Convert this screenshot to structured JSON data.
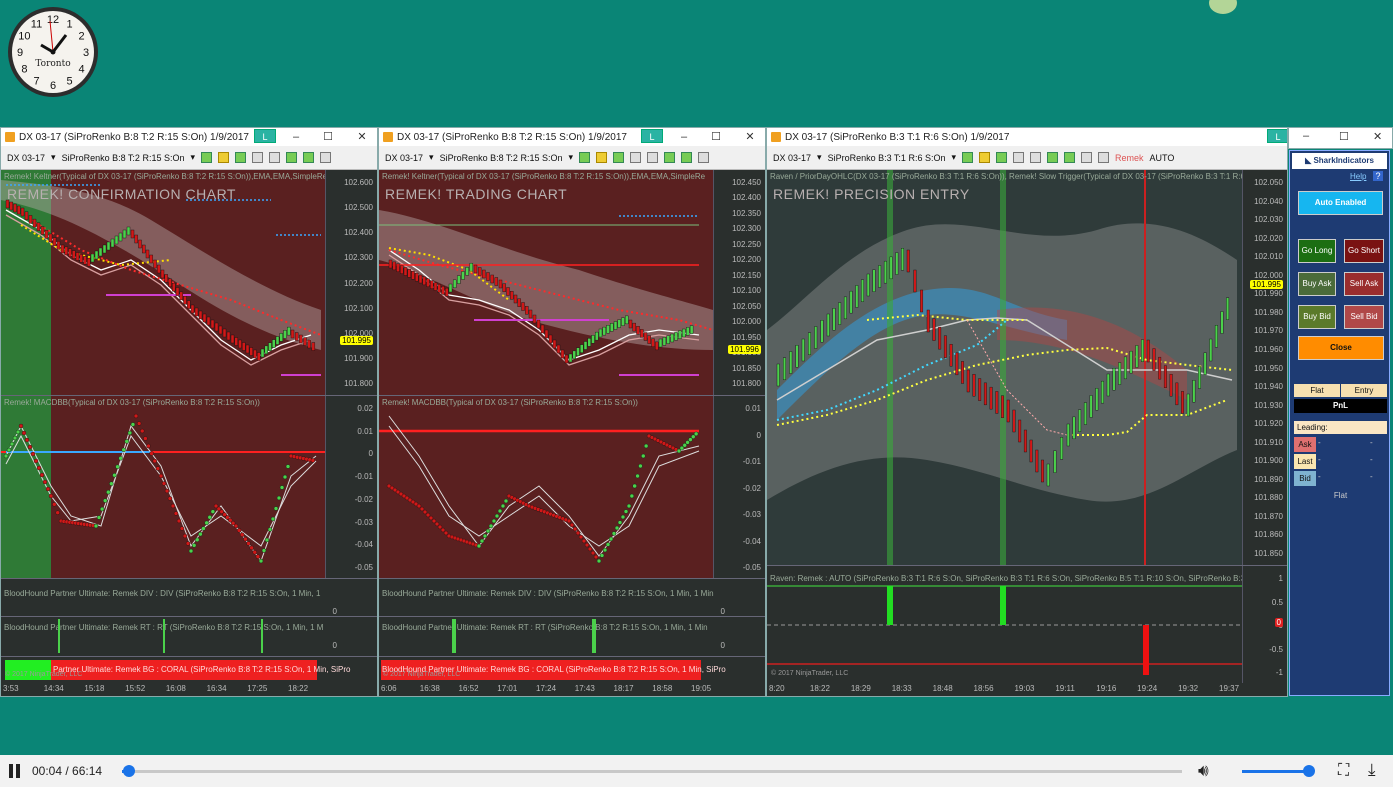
{
  "clock": {
    "city": "Toronto",
    "numerals": [
      "12",
      "1",
      "2",
      "3",
      "4",
      "5",
      "6",
      "7",
      "8",
      "9",
      "10",
      "11"
    ]
  },
  "windows": [
    {
      "title": "DX 03-17 (SiProRenko B:8 T:2 R:15 S:On)  1/9/2017",
      "l_badge": "L",
      "toolbar": {
        "instrument": "DX 03-17",
        "bartype": "SiProRenko B:8 T:2 R:15 S:On"
      },
      "price_label": "Remek! Keltner(Typical of DX 03-17 (SiProRenko B:8 T:2 R:15 S:On)),EMA,EMA,SimpleRe",
      "chart_title": "REMEK! CONFIRMATION CHART",
      "price_ticks": [
        "102.600",
        "102.500",
        "102.400",
        "102.300",
        "102.200",
        "102.100",
        "102.000",
        "101.900",
        "101.800"
      ],
      "price_tag": "101.995",
      "macd_label": "Remek! MACDBB(Typical of DX 03-17 (SiProRenko B:8 T:2 R:15 S:On))",
      "macd_ticks": [
        "0.02",
        "0.01",
        "0",
        "-0.01",
        "-0.02",
        "-0.03",
        "-0.04",
        "-0.05"
      ],
      "div_label": "BloodHound Partner Ultimate: Remek DIV : DIV (SiProRenko B:8 T:2 R:15 S:On, 1 Min, 1",
      "rt_label": "BloodHound Partner Ultimate: Remek RT : RT (SiProRenko B:8 T:2 R:15 S:On, 1 Min, 1 M",
      "bg_label": "Partner Ultimate: Remek BG : CORAL (SiProRenko B:8 T:2 R:15 S:On, 1 Min, SiPro",
      "copyright": "© 2017 NinjaTrader, LLC",
      "times": [
        "3:53",
        "14:34",
        "15:18",
        "15:52",
        "16:08",
        "16:34",
        "17:25",
        "18:22"
      ],
      "small_ticks": [
        "0",
        "0"
      ]
    },
    {
      "title": "DX 03-17 (SiProRenko B:8 T:2 R:15 S:On)  1/9/2017",
      "l_badge": "L",
      "toolbar": {
        "instrument": "DX 03-17",
        "bartype": "SiProRenko B:8 T:2 R:15 S:On"
      },
      "price_label": "Remek! Keltner(Typical of DX 03-17 (SiProRenko B:8 T:2 R:15 S:On)),EMA,EMA,SimpleRe",
      "chart_title": "REMEK! TRADING CHART",
      "price_ticks": [
        "102.450",
        "102.400",
        "102.350",
        "102.300",
        "102.250",
        "102.200",
        "102.150",
        "102.100",
        "102.050",
        "102.000",
        "101.950",
        "101.900",
        "101.850",
        "101.800"
      ],
      "price_tag": "101.996",
      "macd_label": "Remek! MACDBB(Typical of DX 03-17 (SiProRenko B:8 T:2 R:15 S:On))",
      "macd_ticks": [
        "0.01",
        "0",
        "-0.01",
        "-0.02",
        "-0.03",
        "-0.04",
        "-0.05"
      ],
      "div_label": "BloodHound Partner Ultimate: Remek DIV : DIV (SiProRenko B:8 T:2 R:15 S:On, 1 Min, 1 Min",
      "rt_label": "BloodHound Partner Ultimate: Remek RT : RT (SiProRenko B:8 T:2 R:15 S:On, 1 Min, 1 Min",
      "bg_label": "BloodHound Partner Ultimate: Remek BG : CORAL (SiProRenko B:8 T:2 R:15 S:On, 1 Min, SiPro",
      "copyright": "© 2017 NinjaTrader, LLC",
      "times": [
        "6:06",
        "16:38",
        "16:52",
        "17:01",
        "17:24",
        "17:43",
        "18:17",
        "18:58",
        "19:05"
      ],
      "small_ticks": [
        "0",
        "0"
      ]
    },
    {
      "title": "DX 03-17 (SiProRenko B:3 T:1 R:6 S:On)  1/9/2017",
      "l_badge": "L",
      "toolbar": {
        "instrument": "DX 03-17",
        "bartype": "SiProRenko B:3 T:1 R:6 S:On",
        "remek": "Remek",
        "auto": "AUTO"
      },
      "price_label": "Raven / PriorDayOHLC(DX 03-17 (SiProRenko B:3 T:1 R:6 S:On)), Remek! Slow Trigger(Typical of DX 03-17 (SiProRenko B:3 T:1 R:6",
      "chart_title": "REMEK! PRECISION ENTRY",
      "price_ticks": [
        "102.050",
        "102.040",
        "102.030",
        "102.020",
        "102.010",
        "102.000",
        "101.990",
        "101.980",
        "101.970",
        "101.960",
        "101.950",
        "101.940",
        "101.930",
        "101.920",
        "101.910",
        "101.900",
        "101.890",
        "101.880",
        "101.870",
        "101.860",
        "101.850"
      ],
      "price_tag": "101.995",
      "lower_label": "Raven: Remek : AUTO (SiProRenko B:3 T:1 R:6 S:On, SiProRenko B:3 T:1 R:6 S:On, SiProRenko B:5 T:1 R:10 S:On, SiProRenko B:3",
      "lower_ticks": [
        "1",
        "0.5",
        "0",
        "-0.5",
        "-1"
      ],
      "lower_tag": "0",
      "copyright": "© 2017 NinjaTrader, LLC",
      "times": [
        "8:20",
        "18:22",
        "18:29",
        "18:33",
        "18:48",
        "18:56",
        "19:03",
        "19:11",
        "19:16",
        "19:24",
        "19:32",
        "19:37"
      ]
    }
  ],
  "side_panel": {
    "brand": "SharkIndicators",
    "help": "Help",
    "question": "?",
    "auto_enabled": "Auto Enabled",
    "go_long": "Go Long",
    "go_short": "Go Short",
    "buy_ask": "Buy Ask",
    "sell_ask": "Sell Ask",
    "buy_bid": "Buy Bid",
    "sell_bid": "Sell Bid",
    "close": "Close",
    "flat_header": "Flat",
    "entry_header": "Entry",
    "pnl": "PnL",
    "leading": "Leading:",
    "ask": "Ask",
    "last": "Last",
    "bid": "Bid",
    "dash": "-",
    "flat_footer": "Flat"
  },
  "player": {
    "time": "00:04 / 66:14",
    "progress": 0.001,
    "volume": 0.95
  },
  "colors": {
    "desktop": "#0a8576",
    "bull": "#4bd14b",
    "bear": "#d01818"
  }
}
